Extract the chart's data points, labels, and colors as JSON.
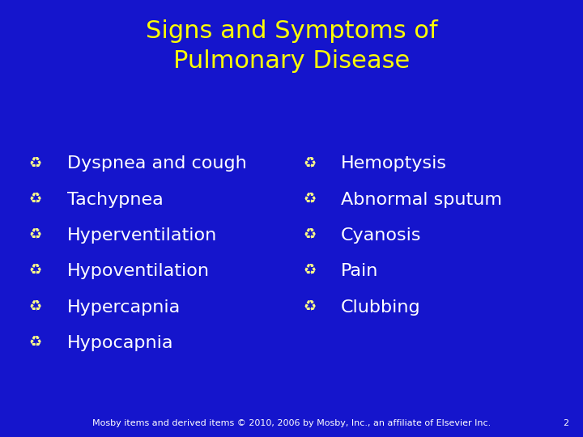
{
  "title_line1": "Signs and Symptoms of",
  "title_line2": "Pulmonary Disease",
  "title_color": "#FFFF00",
  "background_color": "#1515CC",
  "text_color": "#FFFFFF",
  "bullet_color": "#FFFF88",
  "left_items": [
    "Dyspnea and cough",
    "Tachypnea",
    "Hyperventilation",
    "Hypoventilation",
    "Hypercapnia",
    "Hypocapnia"
  ],
  "right_items": [
    "Hemoptysis",
    "Abnormal sputum",
    "Cyanosis",
    "Pain",
    "Clubbing"
  ],
  "footer_text": "Mosby items and derived items © 2010, 2006 by Mosby, Inc., an affiliate of Elsevier Inc.",
  "page_number": "2",
  "title_fontsize": 22,
  "item_fontsize": 16,
  "footer_fontsize": 8,
  "bullet_char": "♻"
}
